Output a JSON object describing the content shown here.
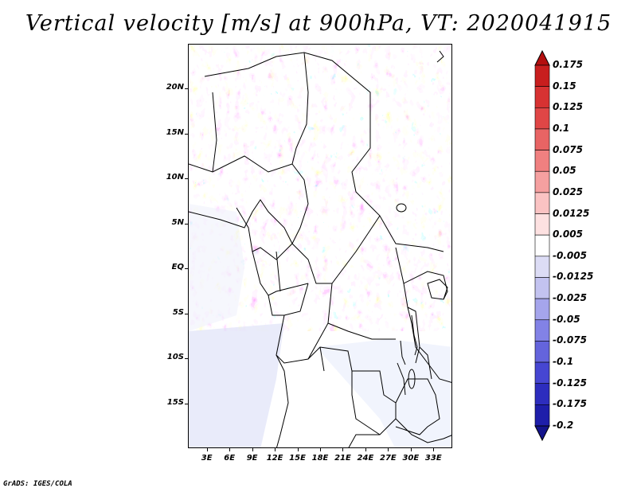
{
  "title": "Vertical velocity [m/s] at 900hPa, VT: 2020041915",
  "credit": "GrADS: IGES/COLA",
  "map": {
    "lat_labels": [
      "20N",
      "15N",
      "10N",
      "5N",
      "EQ",
      "5S",
      "10S",
      "15S"
    ],
    "lat_values": [
      20,
      15,
      10,
      5,
      0,
      -5,
      -10,
      -15
    ],
    "lon_labels": [
      "3E",
      "6E",
      "9E",
      "12E",
      "15E",
      "18E",
      "21E",
      "24E",
      "27E",
      "30E",
      "33E"
    ],
    "lon_values": [
      3,
      6,
      9,
      12,
      15,
      18,
      21,
      24,
      27,
      30,
      33
    ],
    "lat_range": [
      -20,
      25
    ],
    "lon_range": [
      0.5,
      35.5
    ]
  },
  "colorbar": {
    "labels": [
      "0.175",
      "0.15",
      "0.125",
      "0.1",
      "0.075",
      "0.05",
      "0.025",
      "0.0125",
      "0.005",
      "-0.005",
      "-0.0125",
      "-0.025",
      "-0.05",
      "-0.075",
      "-0.1",
      "-0.125",
      "-0.175",
      "-0.2"
    ],
    "colors": [
      "#b40f0f",
      "#c81e1e",
      "#d73232",
      "#e04646",
      "#e86464",
      "#f08080",
      "#f5a0a0",
      "#fac3c3",
      "#fde1e1",
      "#ffffff",
      "#dcdcf5",
      "#c3c3f0",
      "#a5a5ec",
      "#8282e6",
      "#6464dc",
      "#4646d2",
      "#2d2dbe",
      "#1e1eaa",
      "#14148c"
    ]
  }
}
